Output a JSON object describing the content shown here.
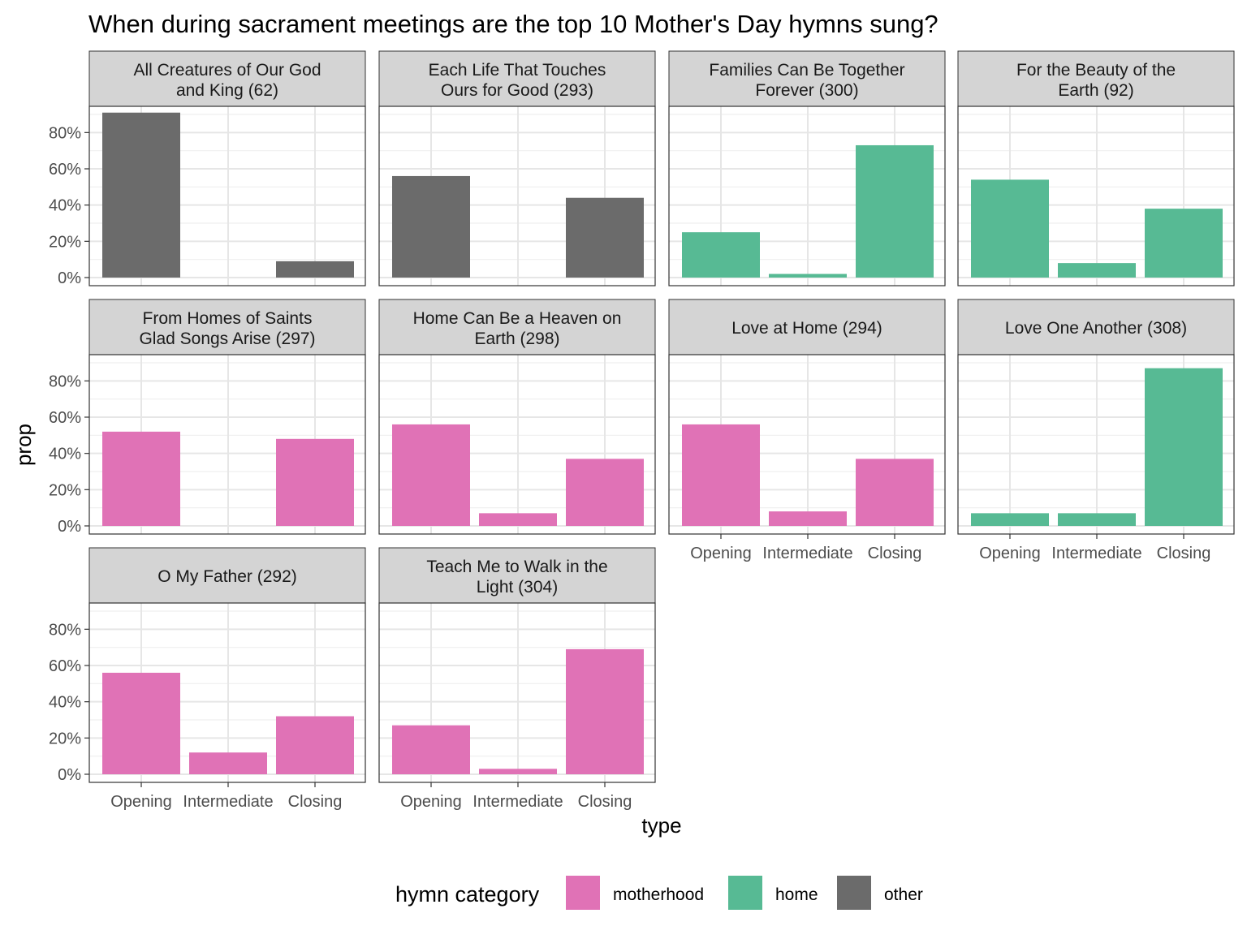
{
  "chart_data": {
    "type": "bar",
    "title": "When during sacrament meetings are the top 10 Mother's Day hymns sung?",
    "xlabel": "type",
    "ylabel": "prop",
    "categories": [
      "Opening",
      "Intermediate",
      "Closing"
    ],
    "y_ticks": [
      "0%",
      "20%",
      "40%",
      "60%",
      "80%"
    ],
    "y_tick_values": [
      0,
      0.2,
      0.4,
      0.6,
      0.8
    ],
    "ylim": [
      0,
      0.9
    ],
    "grid": true,
    "legend": {
      "title": "hymn category",
      "position": "bottom",
      "entries": [
        {
          "key": "motherhood",
          "label": "motherhood",
          "color": "#E072B6"
        },
        {
          "key": "home",
          "label": "home",
          "color": "#57BA94"
        },
        {
          "key": "other",
          "label": "other",
          "color": "#6B6B6B"
        }
      ]
    },
    "facets": [
      {
        "strip": [
          "All Creatures of Our God",
          "and King (62)"
        ],
        "category": "other",
        "values": [
          0.91,
          0,
          0.09
        ]
      },
      {
        "strip": [
          "Each Life That Touches",
          "Ours for Good (293)"
        ],
        "category": "other",
        "values": [
          0.56,
          0,
          0.44
        ]
      },
      {
        "strip": [
          "Families Can Be Together",
          "Forever (300)"
        ],
        "category": "home",
        "values": [
          0.25,
          0.02,
          0.73
        ]
      },
      {
        "strip": [
          "For the Beauty of the",
          "Earth (92)"
        ],
        "category": "home",
        "values": [
          0.54,
          0.08,
          0.38
        ]
      },
      {
        "strip": [
          "From Homes of Saints",
          "Glad Songs Arise (297)"
        ],
        "category": "motherhood",
        "values": [
          0.52,
          0,
          0.48
        ]
      },
      {
        "strip": [
          "Home Can Be a Heaven on",
          "Earth (298)"
        ],
        "category": "motherhood",
        "values": [
          0.56,
          0.07,
          0.37
        ]
      },
      {
        "strip": [
          "Love at Home (294)"
        ],
        "category": "motherhood",
        "values": [
          0.56,
          0.08,
          0.37
        ]
      },
      {
        "strip": [
          "Love One Another (308)"
        ],
        "category": "home",
        "values": [
          0.07,
          0.07,
          0.87
        ]
      },
      {
        "strip": [
          "O My Father (292)"
        ],
        "category": "motherhood",
        "values": [
          0.56,
          0.12,
          0.32
        ]
      },
      {
        "strip": [
          "Teach Me to Walk in the",
          "Light (304)"
        ],
        "category": "motherhood",
        "values": [
          0.27,
          0.03,
          0.69
        ]
      }
    ]
  }
}
